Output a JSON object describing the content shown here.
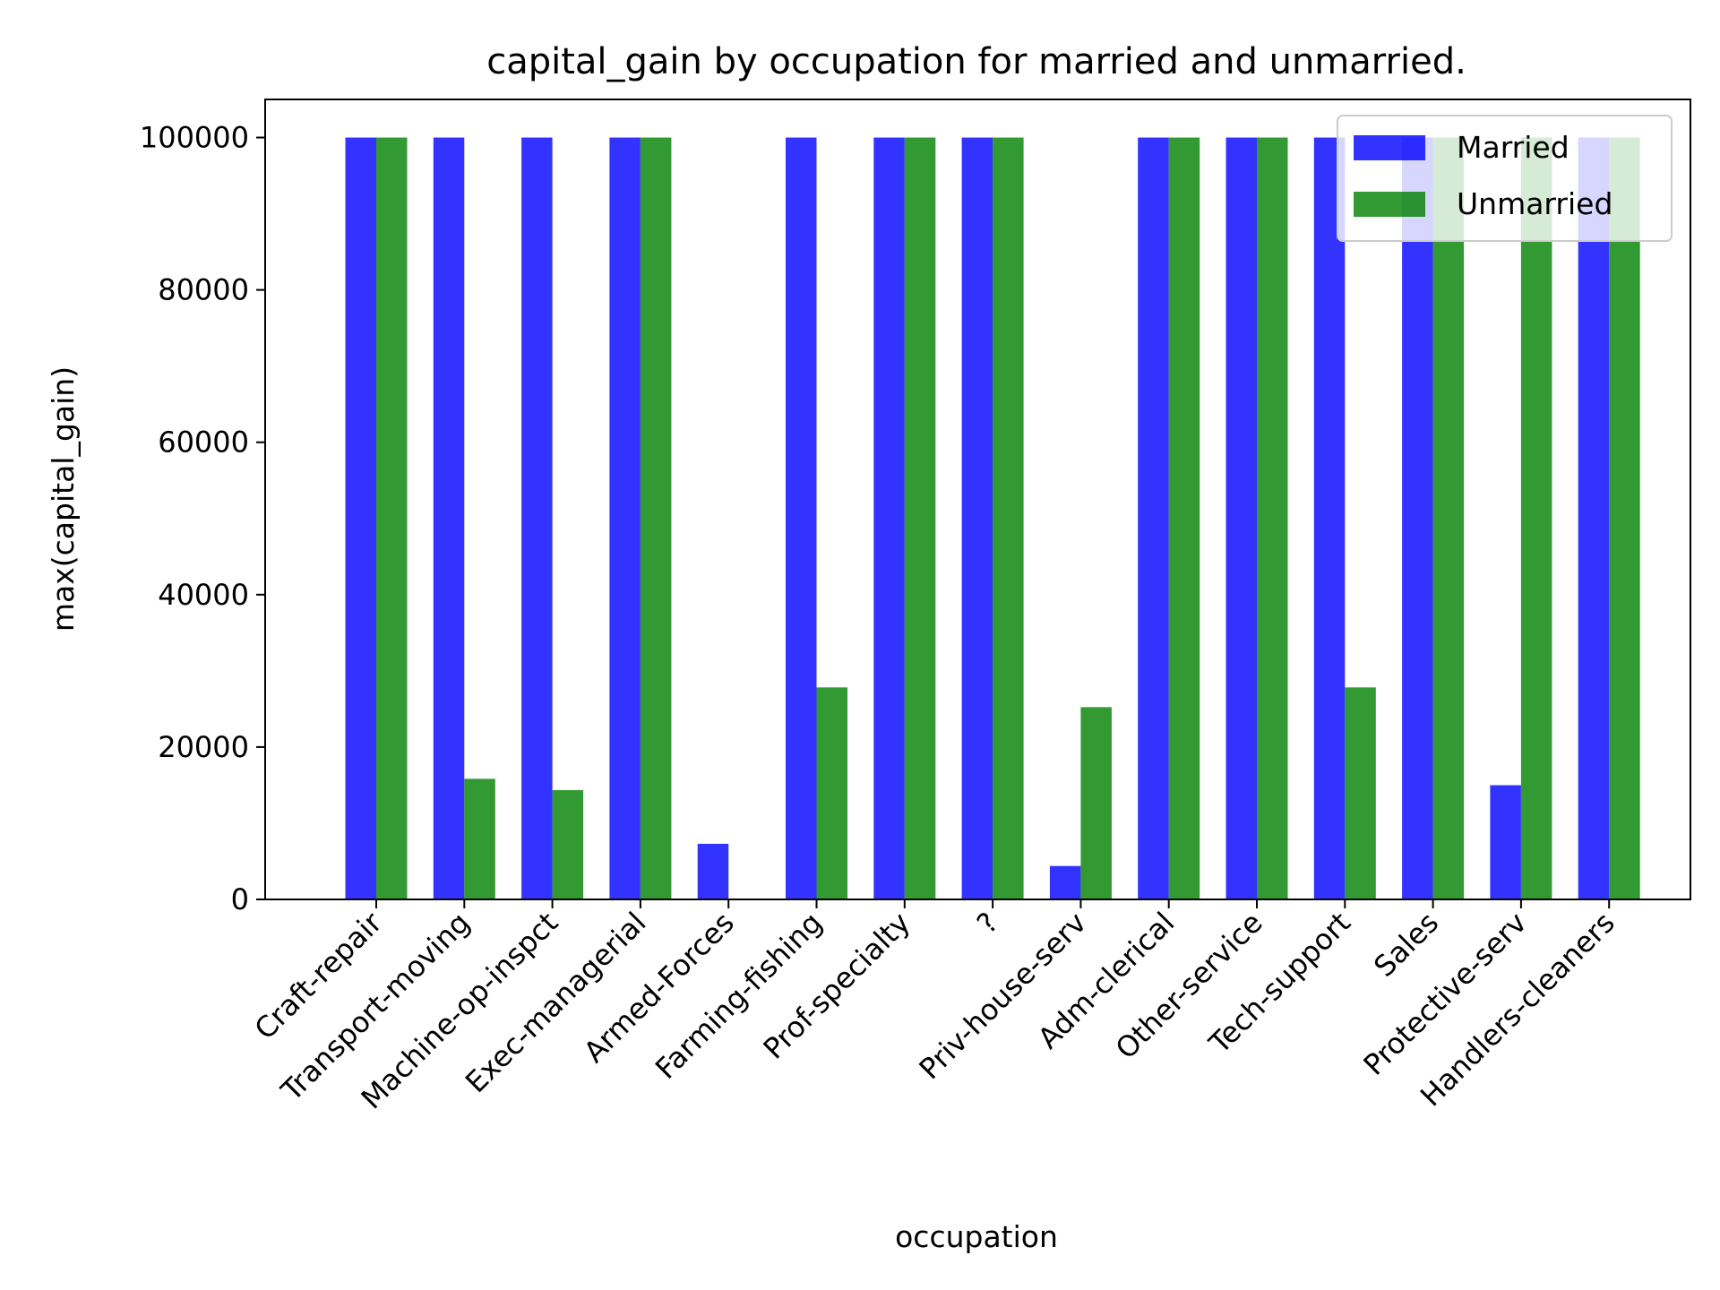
{
  "chart_data": {
    "type": "bar",
    "title": "capital_gain by occupation for married and unmarried.",
    "xlabel": "occupation",
    "ylabel": "max(capital_gain)",
    "ylim": [
      0,
      105000
    ],
    "yticks": [
      0,
      20000,
      40000,
      60000,
      80000,
      100000
    ],
    "ytick_labels": [
      "0",
      "20000",
      "40000",
      "60000",
      "80000",
      "100000"
    ],
    "grid": false,
    "legend_position": "top-right",
    "categories": [
      "Craft-repair",
      "Transport-moving",
      "Machine-op-inspct",
      "Exec-managerial",
      "Armed-Forces",
      "Farming-fishing",
      "Prof-specialty",
      "?",
      "Priv-house-serv",
      "Adm-clerical",
      "Other-service",
      "Tech-support",
      "Sales",
      "Protective-serv",
      "Handlers-cleaners"
    ],
    "series": [
      {
        "name": "Married",
        "color": "#0000ff",
        "values": [
          99999,
          99999,
          99999,
          99999,
          7298,
          99999,
          99999,
          99999,
          4386,
          99999,
          99999,
          99999,
          99999,
          14993,
          99999
        ]
      },
      {
        "name": "Unmarried",
        "color": "#008000",
        "values": [
          99999,
          15831,
          14344,
          99999,
          0,
          27828,
          99999,
          99999,
          25236,
          99999,
          99999,
          27828,
          99999,
          99999,
          99999
        ]
      }
    ]
  }
}
